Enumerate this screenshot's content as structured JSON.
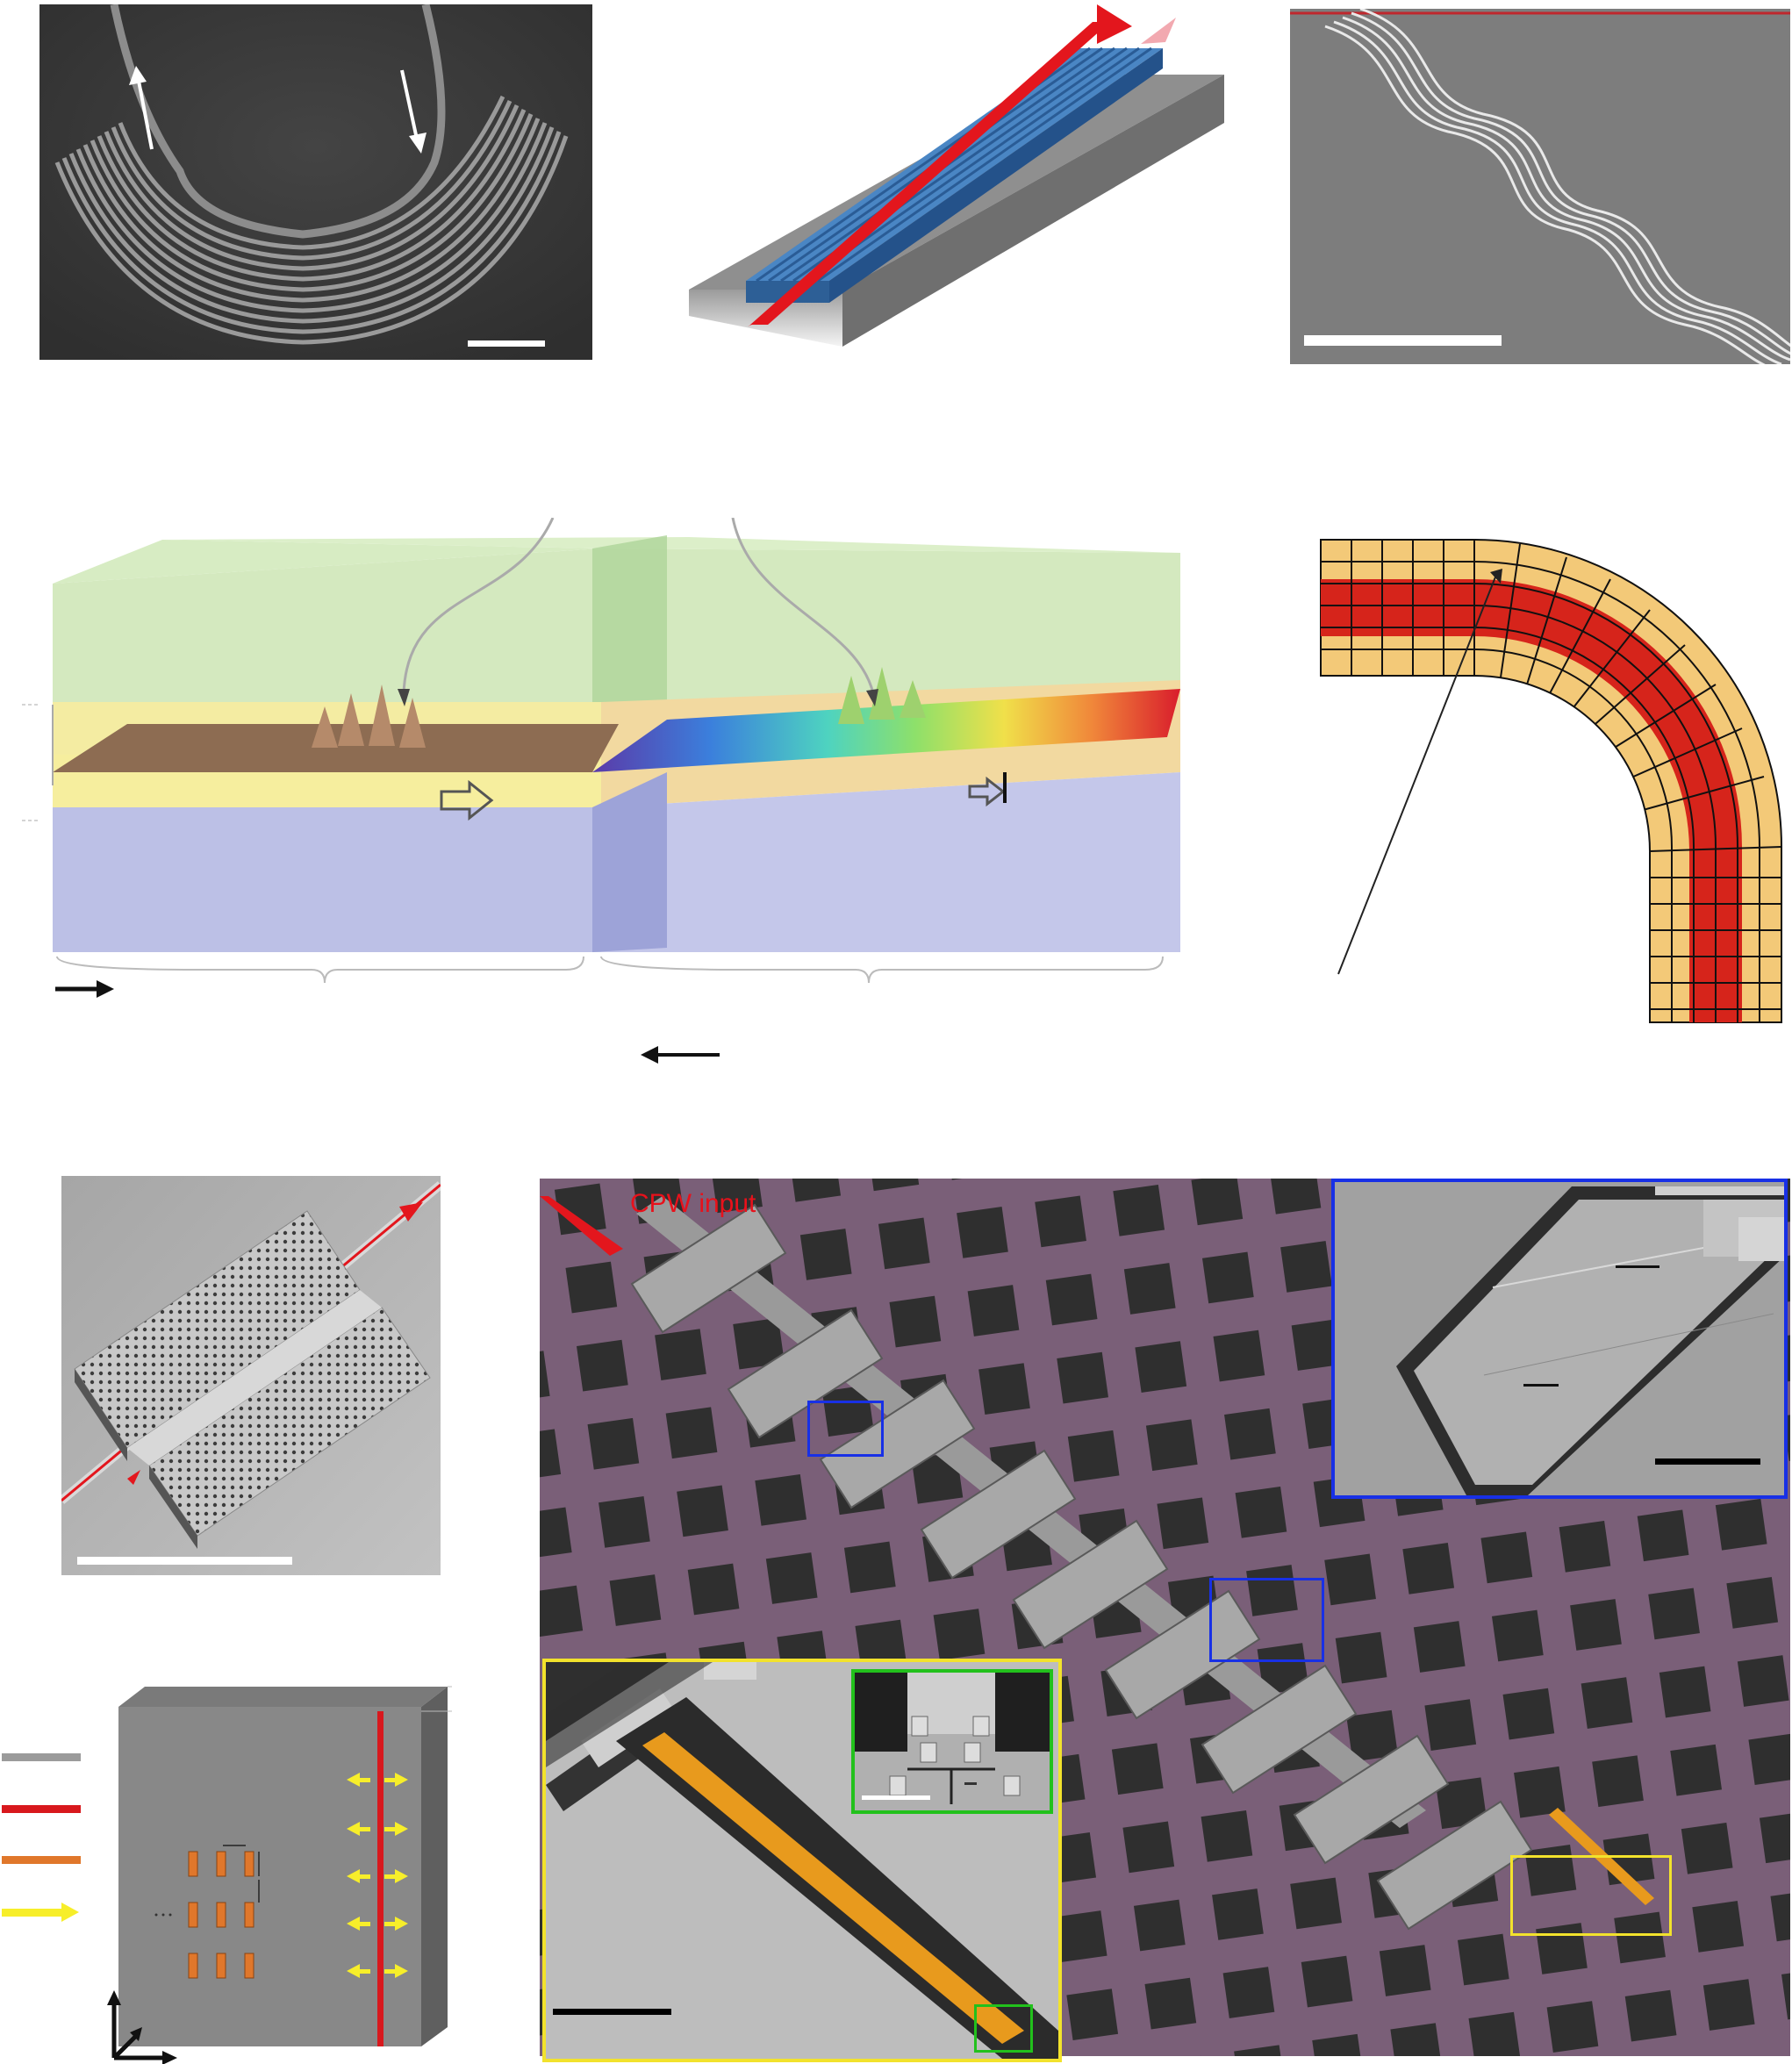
{
  "figure": {
    "cpw_label": "CPW input"
  },
  "colors": {
    "sem_dark": "#3c3c3c",
    "sem_light": "#9a9a9a",
    "waveguide_blue": "#3a78b8",
    "beam_red": "#e3161d",
    "cladding_green": "#bfe0a8",
    "core_yellow": "#f4ec9c",
    "substrate_blue": "#b9bde6",
    "bend_red": "#d6241b",
    "bend_outer": "#f3c978",
    "purple_substrate": "#7a5f78",
    "resonator_orange": "#e89a1d",
    "inset_blue": "#1830e6",
    "inset_yellow": "#f2e22c",
    "inset_green": "#22c11c",
    "arrow_yellow": "#f7ee2a",
    "legend_gray": "#9b9b9b",
    "legend_red": "#d8181d",
    "legend_orange": "#e0772b"
  }
}
